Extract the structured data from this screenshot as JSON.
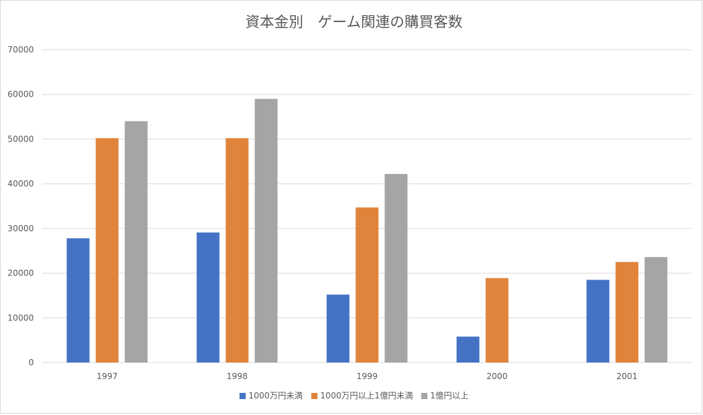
{
  "chart_data": {
    "type": "bar",
    "title": "資本金別　ゲーム関連の購買客数",
    "xlabel": "",
    "ylabel": "",
    "categories": [
      "1997",
      "1998",
      "1999",
      "2000",
      "2001"
    ],
    "series": [
      {
        "name": "1000万円未満",
        "color": "#4472c4",
        "values": [
          27800,
          29100,
          15200,
          5800,
          18500
        ]
      },
      {
        "name": "1000万円以上1億円未満",
        "color": "#e0843b",
        "values": [
          50200,
          50200,
          34700,
          18900,
          22500
        ]
      },
      {
        "name": "1億円以上",
        "color": "#a5a5a5",
        "values": [
          54000,
          59000,
          42200,
          null,
          23600
        ]
      }
    ],
    "ylim": [
      0,
      70000
    ],
    "yticks": [
      0,
      10000,
      20000,
      30000,
      40000,
      50000,
      60000,
      70000
    ],
    "grid": true,
    "legend_position": "bottom"
  }
}
